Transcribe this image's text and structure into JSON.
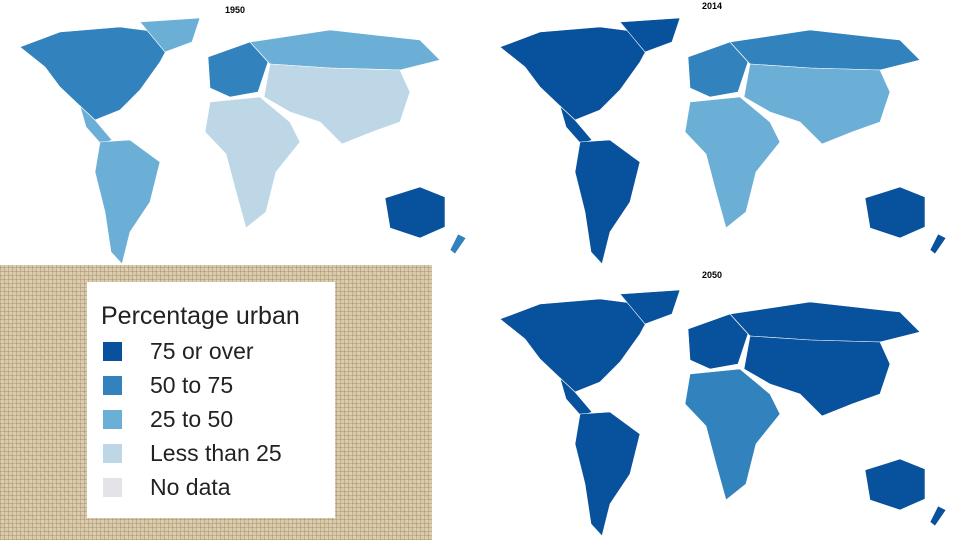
{
  "maps": [
    {
      "title": "1950"
    },
    {
      "title": "2014"
    },
    {
      "title": "2050"
    }
  ],
  "legend": {
    "title": "Percentage urban",
    "items": [
      {
        "label": "75 or over",
        "color": "#08519c"
      },
      {
        "label": "50 to 75",
        "color": "#3182bd"
      },
      {
        "label": "25 to 50",
        "color": "#6baed6"
      },
      {
        "label": "Less than 25",
        "color": "#bdd7e7"
      },
      {
        "label": "No data",
        "color": "#e4e4e8"
      }
    ]
  }
}
